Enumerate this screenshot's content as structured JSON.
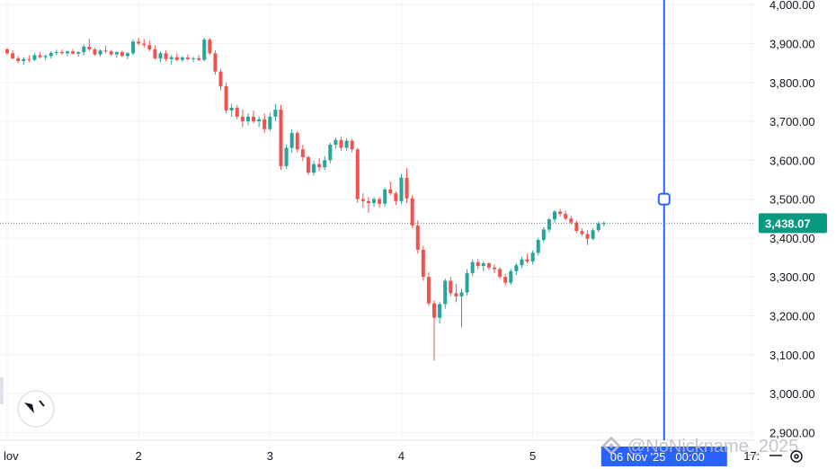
{
  "chart_data": {
    "type": "candlestick",
    "symbol_note": "",
    "y_axis": {
      "ticks": [
        "4,000.00",
        "3,900.00",
        "3,800.00",
        "3,700.00",
        "3,600.00",
        "3,500.00",
        "3,400.00",
        "3,300.00",
        "3,200.00",
        "3,100.00",
        "3,000.00",
        "2,900.00"
      ],
      "tick_values": [
        4000,
        3900,
        3800,
        3700,
        3600,
        3500,
        3400,
        3300,
        3200,
        3100,
        3000,
        2900
      ],
      "range": [
        2880,
        4012
      ]
    },
    "x_axis": {
      "labels": [
        {
          "text": "lov",
          "t": 0
        },
        {
          "text": "2",
          "t": 24
        },
        {
          "text": "3",
          "t": 48
        },
        {
          "text": "4",
          "t": 72
        },
        {
          "text": "5",
          "t": 96
        },
        {
          "text": "17:",
          "t": 136
        }
      ]
    },
    "current_price": {
      "label": "3,438.07",
      "value": 3438.07
    },
    "crosshair": {
      "label": "06 Nov '25   00:00",
      "t": 120,
      "value": 3500
    },
    "watermark": "@NoNickname_2025",
    "colors": {
      "up": "#26a69a",
      "down": "#ef5350",
      "price_tag": "#089981",
      "crosshair": "#2962ff",
      "grid": "#f0f3fa"
    },
    "candles": [
      [
        3885,
        3890,
        3870,
        3875
      ],
      [
        3875,
        3882,
        3860,
        3862
      ],
      [
        3862,
        3868,
        3850,
        3855
      ],
      [
        3855,
        3865,
        3845,
        3860
      ],
      [
        3860,
        3870,
        3852,
        3858
      ],
      [
        3858,
        3875,
        3855,
        3870
      ],
      [
        3870,
        3878,
        3862,
        3865
      ],
      [
        3865,
        3872,
        3858,
        3868
      ],
      [
        3868,
        3880,
        3862,
        3876
      ],
      [
        3876,
        3884,
        3870,
        3878
      ],
      [
        3878,
        3885,
        3872,
        3875
      ],
      [
        3875,
        3882,
        3868,
        3880
      ],
      [
        3880,
        3886,
        3872,
        3874
      ],
      [
        3874,
        3880,
        3866,
        3878
      ],
      [
        3878,
        3898,
        3870,
        3892
      ],
      [
        3892,
        3912,
        3880,
        3885
      ],
      [
        3885,
        3890,
        3868,
        3872
      ],
      [
        3872,
        3885,
        3866,
        3882
      ],
      [
        3882,
        3895,
        3874,
        3880
      ],
      [
        3880,
        3884,
        3868,
        3872
      ],
      [
        3872,
        3880,
        3864,
        3878
      ],
      [
        3878,
        3882,
        3865,
        3868
      ],
      [
        3868,
        3878,
        3860,
        3875
      ],
      [
        3875,
        3910,
        3870,
        3905
      ],
      [
        3905,
        3915,
        3895,
        3900
      ],
      [
        3900,
        3912,
        3890,
        3896
      ],
      [
        3896,
        3908,
        3880,
        3885
      ],
      [
        3885,
        3895,
        3858,
        3862
      ],
      [
        3862,
        3880,
        3852,
        3875
      ],
      [
        3875,
        3882,
        3855,
        3860
      ],
      [
        3860,
        3870,
        3845,
        3865
      ],
      [
        3865,
        3875,
        3855,
        3858
      ],
      [
        3858,
        3868,
        3852,
        3864
      ],
      [
        3864,
        3872,
        3856,
        3860
      ],
      [
        3860,
        3866,
        3852,
        3862
      ],
      [
        3862,
        3870,
        3855,
        3858
      ],
      [
        3858,
        3915,
        3855,
        3910
      ],
      [
        3910,
        3915,
        3870,
        3875
      ],
      [
        3875,
        3882,
        3820,
        3828
      ],
      [
        3828,
        3835,
        3780,
        3790
      ],
      [
        3790,
        3800,
        3720,
        3728
      ],
      [
        3728,
        3745,
        3712,
        3735
      ],
      [
        3735,
        3742,
        3705,
        3712
      ],
      [
        3712,
        3730,
        3685,
        3700
      ],
      [
        3700,
        3720,
        3690,
        3712
      ],
      [
        3712,
        3728,
        3695,
        3700
      ],
      [
        3700,
        3712,
        3685,
        3705
      ],
      [
        3705,
        3720,
        3670,
        3680
      ],
      [
        3680,
        3722,
        3675,
        3712
      ],
      [
        3712,
        3745,
        3700,
        3730
      ],
      [
        3730,
        3742,
        3575,
        3585
      ],
      [
        3585,
        3640,
        3578,
        3632
      ],
      [
        3632,
        3680,
        3620,
        3670
      ],
      [
        3670,
        3675,
        3620,
        3628
      ],
      [
        3628,
        3640,
        3598,
        3608
      ],
      [
        3608,
        3612,
        3562,
        3568
      ],
      [
        3568,
        3598,
        3560,
        3590
      ],
      [
        3590,
        3605,
        3572,
        3582
      ],
      [
        3582,
        3610,
        3575,
        3600
      ],
      [
        3600,
        3645,
        3592,
        3640
      ],
      [
        3640,
        3658,
        3630,
        3652
      ],
      [
        3652,
        3660,
        3625,
        3632
      ],
      [
        3632,
        3656,
        3625,
        3650
      ],
      [
        3650,
        3655,
        3620,
        3628
      ],
      [
        3628,
        3632,
        3490,
        3500
      ],
      [
        3500,
        3515,
        3478,
        3495
      ],
      [
        3495,
        3505,
        3465,
        3490
      ],
      [
        3490,
        3505,
        3480,
        3500
      ],
      [
        3500,
        3505,
        3478,
        3488
      ],
      [
        3488,
        3530,
        3480,
        3525
      ],
      [
        3525,
        3545,
        3510,
        3515
      ],
      [
        3515,
        3520,
        3485,
        3495
      ],
      [
        3495,
        3565,
        3488,
        3555
      ],
      [
        3555,
        3580,
        3490,
        3502
      ],
      [
        3502,
        3510,
        3425,
        3432
      ],
      [
        3432,
        3445,
        3360,
        3370
      ],
      [
        3370,
        3380,
        3290,
        3300
      ],
      [
        3300,
        3312,
        3225,
        3232
      ],
      [
        3232,
        3240,
        3085,
        3195
      ],
      [
        3195,
        3235,
        3180,
        3230
      ],
      [
        3230,
        3296,
        3218,
        3290
      ],
      [
        3290,
        3300,
        3250,
        3258
      ],
      [
        3258,
        3282,
        3235,
        3250
      ],
      [
        3250,
        3270,
        3170,
        3260
      ],
      [
        3260,
        3320,
        3252,
        3310
      ],
      [
        3310,
        3345,
        3302,
        3338
      ],
      [
        3338,
        3346,
        3320,
        3328
      ],
      [
        3328,
        3340,
        3315,
        3335
      ],
      [
        3335,
        3338,
        3318,
        3324
      ],
      [
        3324,
        3332,
        3310,
        3320
      ],
      [
        3320,
        3325,
        3295,
        3300
      ],
      [
        3300,
        3308,
        3278,
        3285
      ],
      [
        3285,
        3320,
        3280,
        3315
      ],
      [
        3315,
        3335,
        3305,
        3330
      ],
      [
        3330,
        3352,
        3322,
        3345
      ],
      [
        3345,
        3360,
        3335,
        3340
      ],
      [
        3340,
        3368,
        3332,
        3362
      ],
      [
        3362,
        3400,
        3355,
        3395
      ],
      [
        3395,
        3428,
        3390,
        3422
      ],
      [
        3422,
        3452,
        3415,
        3448
      ],
      [
        3448,
        3472,
        3440,
        3468
      ],
      [
        3468,
        3475,
        3455,
        3462
      ],
      [
        3462,
        3470,
        3445,
        3450
      ],
      [
        3450,
        3458,
        3435,
        3440
      ],
      [
        3440,
        3445,
        3412,
        3418
      ],
      [
        3418,
        3425,
        3405,
        3410
      ],
      [
        3410,
        3420,
        3382,
        3398
      ],
      [
        3398,
        3426,
        3394,
        3420
      ],
      [
        3420,
        3442,
        3415,
        3437
      ],
      [
        3437,
        3442,
        3430,
        3438
      ]
    ]
  }
}
